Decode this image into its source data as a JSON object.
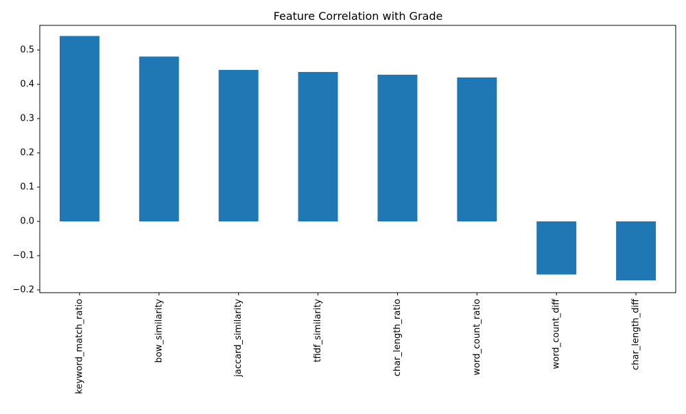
{
  "chart_data": {
    "type": "bar",
    "title": "Feature Correlation with Grade",
    "xlabel": "",
    "ylabel": "",
    "categories": [
      "keyword_match_ratio",
      "bow_similarity",
      "jaccard_similarity",
      "tfidf_similarity",
      "char_length_ratio",
      "word_count_ratio",
      "word_count_diff",
      "char_length_diff"
    ],
    "values": [
      0.541,
      0.481,
      0.442,
      0.436,
      0.428,
      0.42,
      -0.155,
      -0.172
    ],
    "ylim": [
      -0.208,
      0.572
    ],
    "yticks": [
      "−0.2",
      "−0.1",
      "0.0",
      "0.1",
      "0.2",
      "0.3",
      "0.4",
      "0.5"
    ],
    "ytick_values": [
      -0.2,
      -0.1,
      0.0,
      0.1,
      0.2,
      0.3,
      0.4,
      0.5
    ],
    "bar_color": "#1f77b4",
    "grid": false,
    "legend": false
  }
}
